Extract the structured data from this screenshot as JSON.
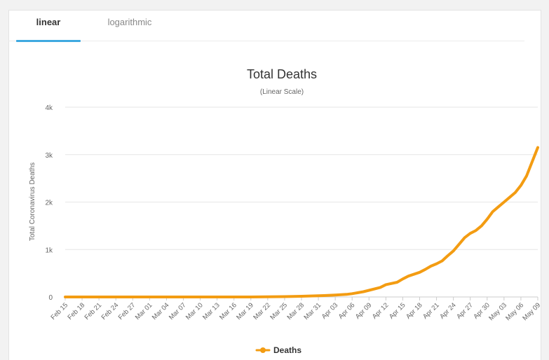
{
  "tabs": [
    {
      "label": "linear",
      "active": true
    },
    {
      "label": "logarithmic",
      "active": false
    }
  ],
  "colors": {
    "series": "#f39c12",
    "tab_underline": "#3fa9e0",
    "grid": "#e6e6e6"
  },
  "chart_data": {
    "type": "line",
    "title": "Total Deaths",
    "subtitle": "(Linear Scale)",
    "xlabel": "",
    "ylabel": "Total Coronavirus Deaths",
    "ylim": [
      0,
      4000
    ],
    "yticks": [
      0,
      1000,
      2000,
      3000,
      4000
    ],
    "ytick_labels": [
      "0",
      "1k",
      "2k",
      "3k",
      "4k"
    ],
    "grid": true,
    "legend_position": "bottom-center",
    "x_tick_labels": [
      "Feb 15",
      "Feb 18",
      "Feb 21",
      "Feb 24",
      "Feb 27",
      "Mar 01",
      "Mar 04",
      "Mar 07",
      "Mar 10",
      "Mar 13",
      "Mar 16",
      "Mar 19",
      "Mar 22",
      "Mar 25",
      "Mar 28",
      "Mar 31",
      "Apr 03",
      "Apr 06",
      "Apr 09",
      "Apr 12",
      "Apr 15",
      "Apr 18",
      "Apr 21",
      "Apr 24",
      "Apr 27",
      "Apr 30",
      "May 03",
      "May 06",
      "May 09"
    ],
    "series": [
      {
        "name": "Deaths",
        "color": "#f39c12",
        "x": [
          "Feb 15",
          "Feb 18",
          "Feb 21",
          "Feb 24",
          "Feb 27",
          "Mar 01",
          "Mar 04",
          "Mar 07",
          "Mar 10",
          "Mar 13",
          "Mar 16",
          "Mar 19",
          "Mar 22",
          "Mar 25",
          "Mar 28",
          "Mar 31",
          "Apr 01",
          "Apr 03",
          "Apr 05",
          "Apr 06",
          "Apr 08",
          "Apr 09",
          "Apr 11",
          "Apr 12",
          "Apr 14",
          "Apr 15",
          "Apr 16",
          "Apr 18",
          "Apr 19",
          "Apr 20",
          "Apr 21",
          "Apr 22",
          "Apr 23",
          "Apr 24",
          "Apr 25",
          "Apr 26",
          "Apr 27",
          "Apr 28",
          "Apr 29",
          "Apr 30",
          "May 01",
          "May 02",
          "May 03",
          "May 04",
          "May 05",
          "May 06",
          "May 07",
          "May 08",
          "May 09"
        ],
        "values": [
          0,
          0,
          0,
          0,
          0,
          0,
          0,
          0,
          0,
          0,
          0,
          0,
          5,
          8,
          15,
          25,
          30,
          40,
          55,
          70,
          110,
          140,
          200,
          260,
          310,
          380,
          440,
          520,
          580,
          650,
          700,
          760,
          870,
          970,
          1110,
          1250,
          1340,
          1400,
          1500,
          1640,
          1800,
          1900,
          2000,
          2100,
          2200,
          2350,
          2550,
          2850,
          3150
        ]
      }
    ]
  }
}
